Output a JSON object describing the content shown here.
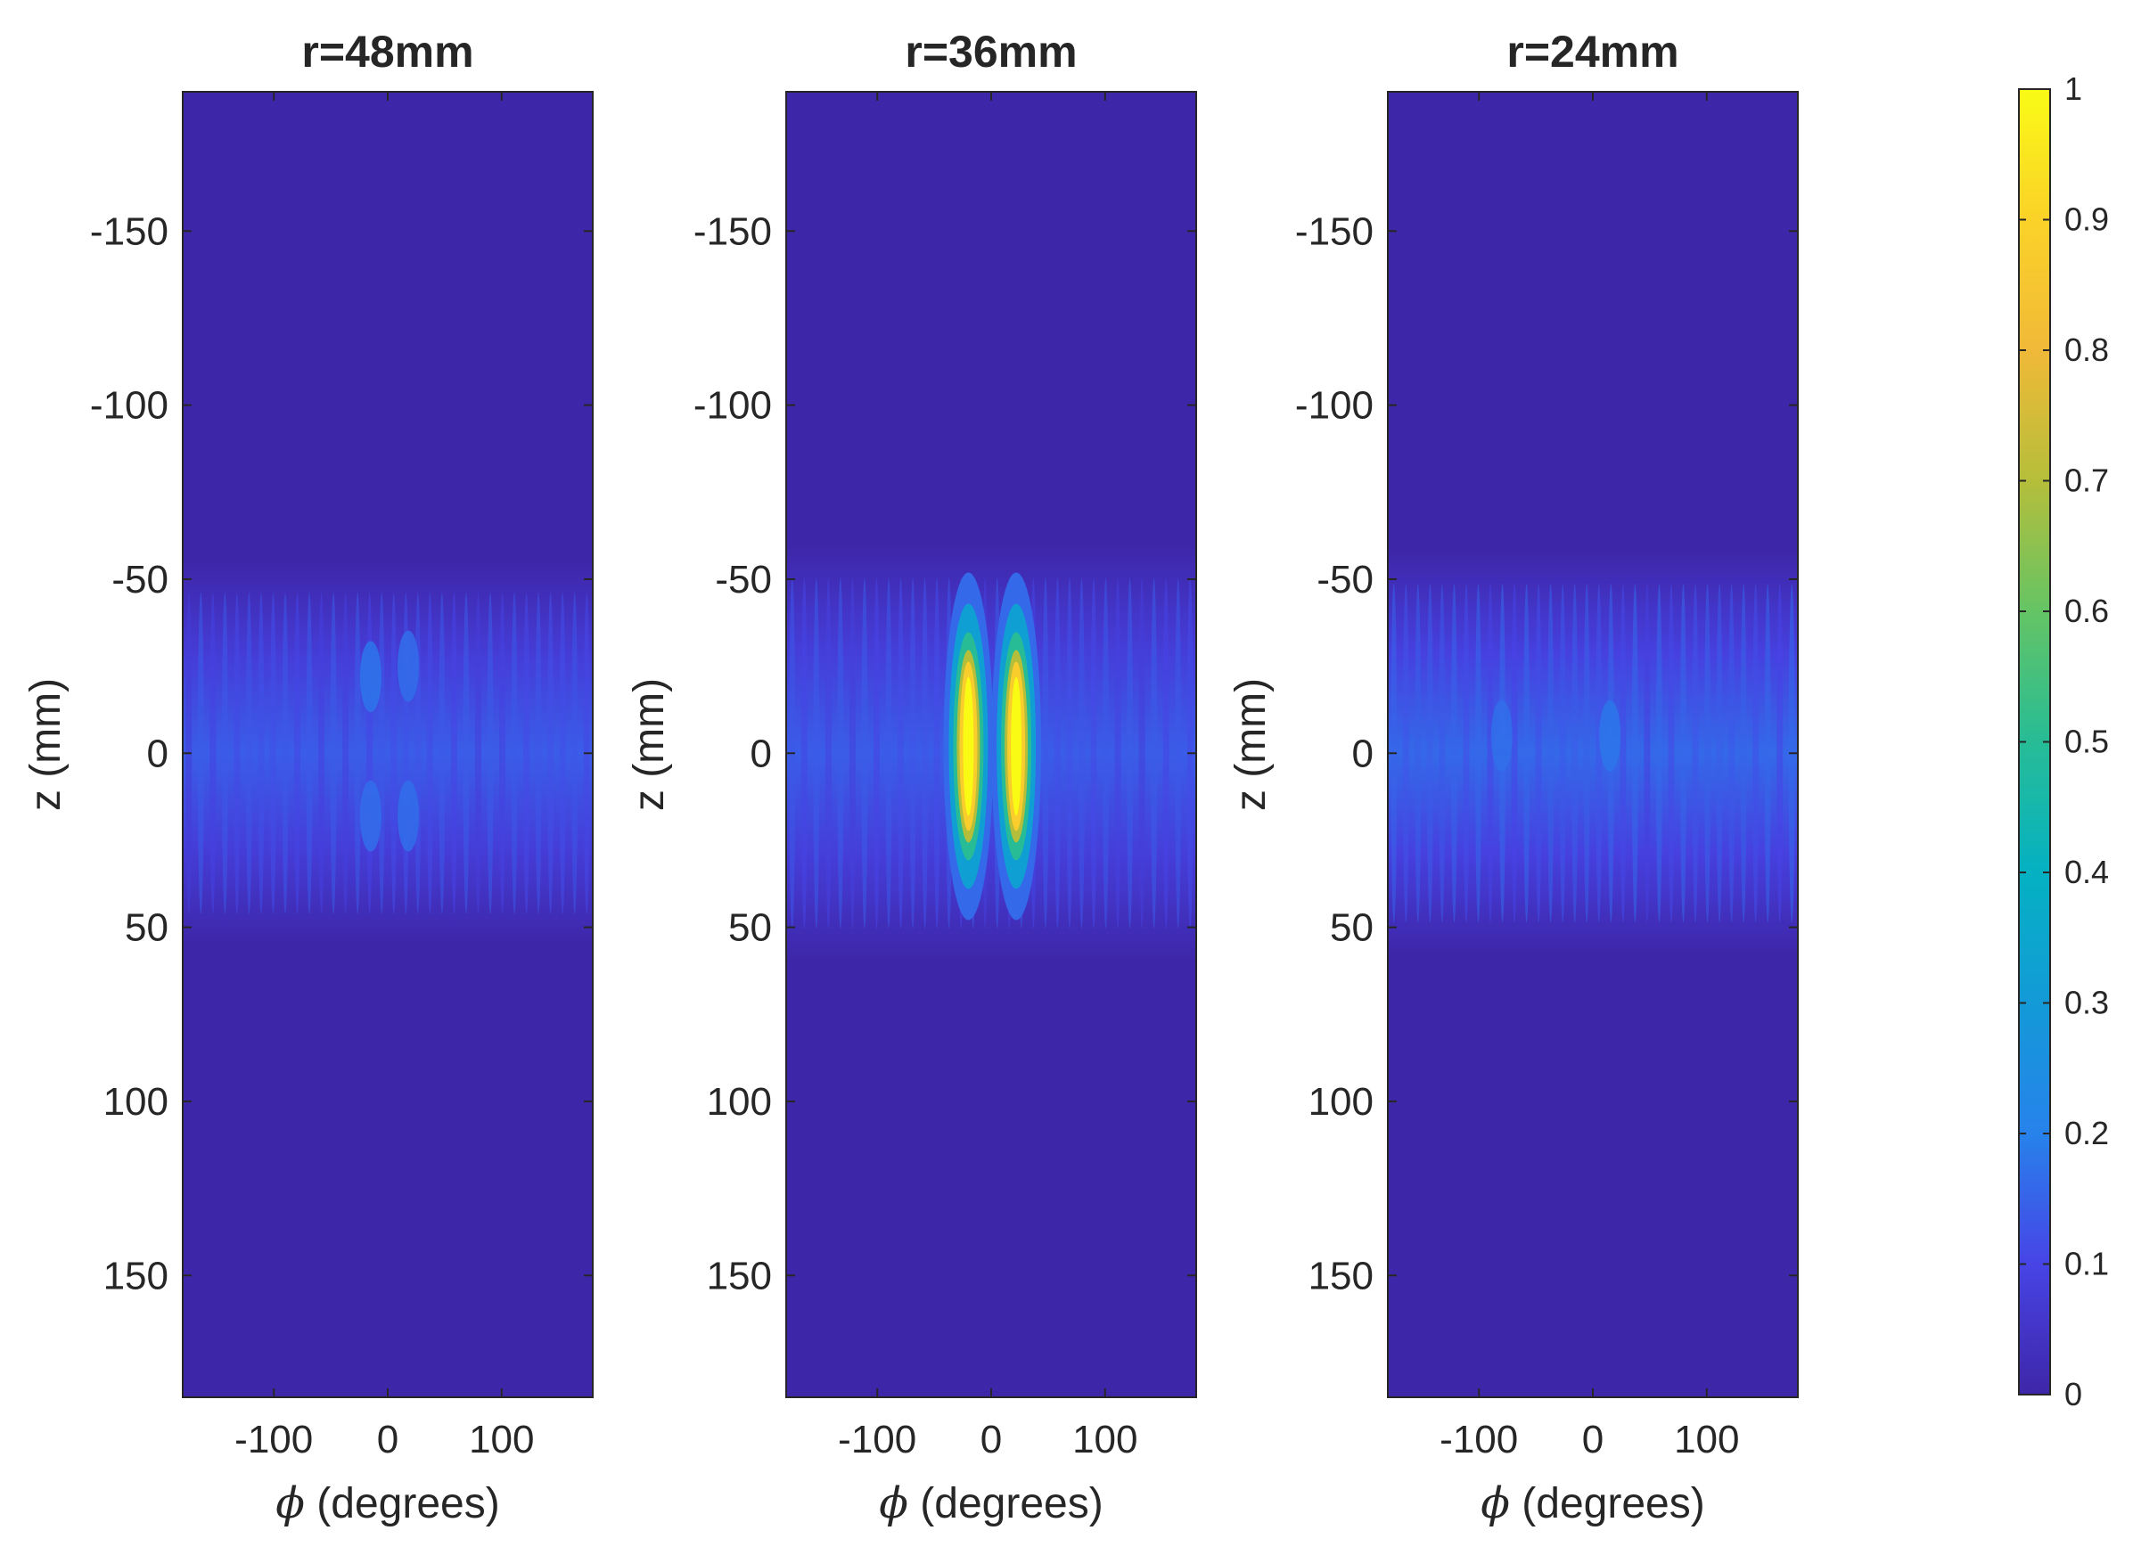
{
  "chart_data": {
    "type": "heatmap",
    "colormap": "parula",
    "panels": [
      {
        "title": "r=48mm",
        "xlabel": "(degrees)",
        "xlabel_symbol": "ϕ",
        "ylabel": "z (mm)",
        "xlim": [
          -180,
          180
        ],
        "ylim": [
          -190,
          185
        ],
        "y_reversed": true,
        "xticks": [
          -100,
          0,
          100
        ],
        "xtick_labels": [
          "-100",
          "0",
          "100"
        ],
        "yticks": [
          -150,
          -100,
          -50,
          0,
          50,
          100,
          150
        ],
        "ytick_labels": [
          "-150",
          "-100",
          "-50",
          "0",
          "50",
          "100",
          "150"
        ],
        "band": {
          "z_extent": [
            -55,
            55
          ],
          "peak_value": 0.14
        },
        "peaks": [
          {
            "phi": -15,
            "z": -22,
            "value": 0.18
          },
          {
            "phi": -15,
            "z": 18,
            "value": 0.17
          },
          {
            "phi": 18,
            "z": -25,
            "value": 0.17
          },
          {
            "phi": 18,
            "z": 18,
            "value": 0.17
          }
        ]
      },
      {
        "title": "r=36mm",
        "xlabel": "(degrees)",
        "xlabel_symbol": "ϕ",
        "ylabel": "z (mm)",
        "xlim": [
          -180,
          180
        ],
        "ylim": [
          -190,
          185
        ],
        "y_reversed": true,
        "xticks": [
          -100,
          0,
          100
        ],
        "xtick_labels": [
          "-100",
          "0",
          "100"
        ],
        "yticks": [
          -150,
          -100,
          -50,
          0,
          50,
          100,
          150
        ],
        "ytick_labels": [
          "-150",
          "-100",
          "-50",
          "0",
          "50",
          "100",
          "150"
        ],
        "band": {
          "z_extent": [
            -60,
            60
          ],
          "peak_value": 0.14
        },
        "peaks": [
          {
            "phi": -20,
            "z": -2,
            "value": 1.0
          },
          {
            "phi": 22,
            "z": -2,
            "value": 1.0
          }
        ]
      },
      {
        "title": "r=24mm",
        "xlabel": "(degrees)",
        "xlabel_symbol": "ϕ",
        "ylabel": "z (mm)",
        "xlim": [
          -180,
          180
        ],
        "ylim": [
          -190,
          185
        ],
        "y_reversed": true,
        "xticks": [
          -100,
          0,
          100
        ],
        "xtick_labels": [
          "-100",
          "0",
          "100"
        ],
        "yticks": [
          -150,
          -100,
          -50,
          0,
          50,
          100,
          150
        ],
        "ytick_labels": [
          "-150",
          "-100",
          "-50",
          "0",
          "50",
          "100",
          "150"
        ],
        "band": {
          "z_extent": [
            -58,
            58
          ],
          "peak_value": 0.16
        },
        "peaks": [
          {
            "phi": -80,
            "z": -5,
            "value": 0.17
          },
          {
            "phi": 15,
            "z": -5,
            "value": 0.18
          }
        ]
      }
    ],
    "colorbar": {
      "range": [
        0,
        1
      ],
      "ticks": [
        0,
        0.1,
        0.2,
        0.3,
        0.4,
        0.5,
        0.6,
        0.7,
        0.8,
        0.9,
        1
      ],
      "tick_labels": [
        "0",
        "0.1",
        "0.2",
        "0.3",
        "0.4",
        "0.5",
        "0.6",
        "0.7",
        "0.8",
        "0.9",
        "1"
      ],
      "placement": "right"
    }
  }
}
